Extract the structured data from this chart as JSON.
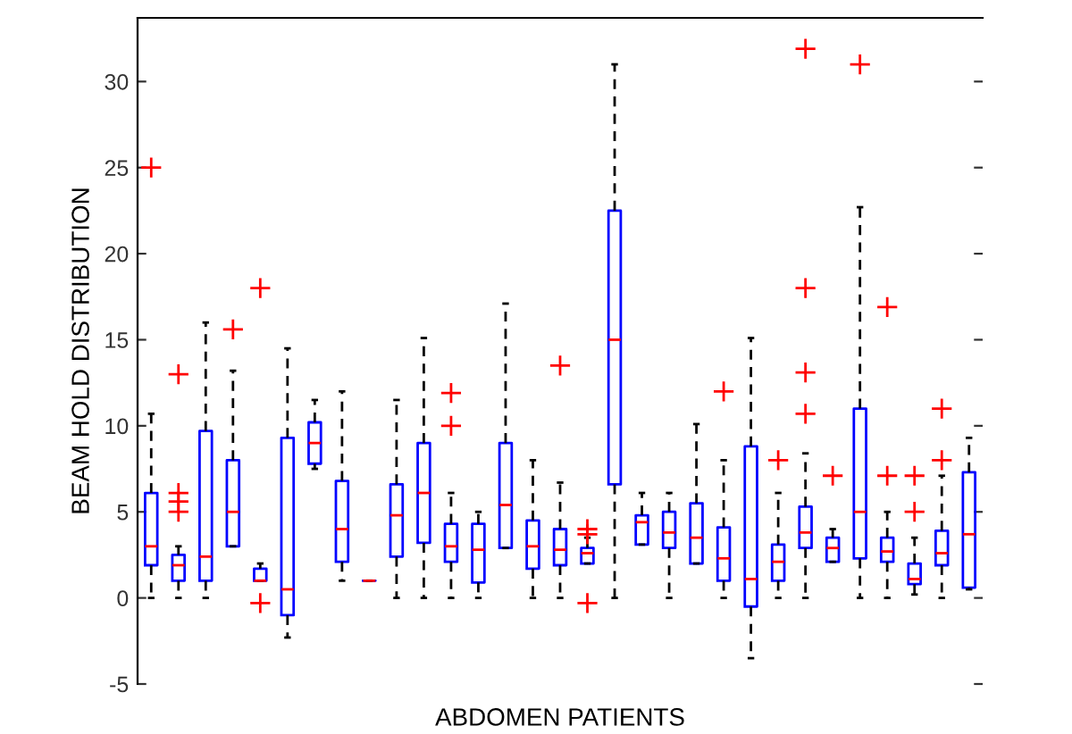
{
  "chart_data": {
    "type": "box",
    "xlabel": "ABDOMEN PATIENTS",
    "ylabel": "BEAM HOLD DISTRIBUTION",
    "categories": [
      null,
      null,
      null,
      null,
      null,
      null,
      null,
      null,
      null,
      null,
      null,
      null,
      null,
      null,
      null,
      null,
      null,
      null,
      null,
      null,
      null,
      null,
      null,
      null,
      null,
      null,
      null,
      null,
      null,
      null,
      null
    ],
    "ylim": [
      -5,
      33.7
    ],
    "yticks": [
      -5,
      0,
      5,
      10,
      15,
      20,
      25,
      30
    ],
    "boxes": [
      {
        "low": 0,
        "q1": 1.9,
        "median": 3.0,
        "q3": 6.1,
        "high": 10.7,
        "outliers": [
          25
        ]
      },
      {
        "low": 0,
        "q1": 1.0,
        "median": 1.9,
        "q3": 2.5,
        "high": 3.0,
        "outliers": [
          13,
          6.1,
          5.6,
          5.0
        ]
      },
      {
        "low": 0,
        "q1": 1.0,
        "median": 2.4,
        "q3": 9.7,
        "high": 16
      },
      {
        "low": 3.0,
        "q1": 3.0,
        "median": 5.0,
        "q3": 8.0,
        "high": 13.2,
        "outliers": [
          15.6
        ]
      },
      {
        "low": 1.0,
        "q1": 1.0,
        "median": 1.0,
        "q3": 1.7,
        "high": 2.0,
        "outliers": [
          18,
          -0.3
        ]
      },
      {
        "low": -2.3,
        "q1": -1.0,
        "median": 0.5,
        "q3": 9.3,
        "high": 14.5
      },
      {
        "low": 7.5,
        "q1": 7.8,
        "median": 9.0,
        "q3": 10.2,
        "high": 11.5
      },
      {
        "low": 1.0,
        "q1": 2.1,
        "median": 4.0,
        "q3": 6.8,
        "high": 12
      },
      {
        "low": 1.0,
        "q1": 1.0,
        "median": 1.0,
        "q3": 1.0,
        "high": 1.0
      },
      {
        "low": 0,
        "q1": 2.4,
        "median": 4.8,
        "q3": 6.6,
        "high": 11.5
      },
      {
        "low": 0,
        "q1": 3.2,
        "median": 6.1,
        "q3": 9.0,
        "high": 15.1
      },
      {
        "low": 0,
        "q1": 2.1,
        "median": 3.0,
        "q3": 4.3,
        "high": 6.1,
        "outliers": [
          11.9,
          10.0
        ]
      },
      {
        "low": 0,
        "q1": 0.9,
        "median": 2.8,
        "q3": 4.3,
        "high": 5.0
      },
      {
        "low": 2.9,
        "q1": 2.9,
        "median": 5.4,
        "q3": 9.0,
        "high": 17.1
      },
      {
        "low": 0,
        "q1": 1.7,
        "median": 3.0,
        "q3": 4.5,
        "high": 8.0
      },
      {
        "low": 0,
        "q1": 1.9,
        "median": 2.8,
        "q3": 4.0,
        "high": 6.7,
        "outliers": [
          13.5
        ]
      },
      {
        "low": 2.0,
        "q1": 2.0,
        "median": 2.6,
        "q3": 2.9,
        "high": 3.5,
        "outliers": [
          4.0,
          3.7,
          -0.3
        ]
      },
      {
        "low": 0,
        "q1": 6.6,
        "median": 15.0,
        "q3": 22.5,
        "high": 31
      },
      {
        "low": 3.1,
        "q1": 3.1,
        "median": 4.4,
        "q3": 4.8,
        "high": 6.1
      },
      {
        "low": 0,
        "q1": 2.9,
        "median": 3.8,
        "q3": 5.0,
        "high": 6.1
      },
      {
        "low": 2.0,
        "q1": 2.0,
        "median": 3.5,
        "q3": 5.5,
        "high": 10.1
      },
      {
        "low": 0,
        "q1": 1.0,
        "median": 2.3,
        "q3": 4.1,
        "high": 8.0,
        "outliers": [
          12.0
        ]
      },
      {
        "low": -3.5,
        "q1": -0.5,
        "median": 1.1,
        "q3": 8.8,
        "high": 15.1
      },
      {
        "low": 0,
        "q1": 1.0,
        "median": 2.1,
        "q3": 3.1,
        "high": 6.1,
        "outliers": [
          8.0
        ]
      },
      {
        "low": 0,
        "q1": 2.9,
        "median": 3.8,
        "q3": 5.3,
        "high": 8.4,
        "outliers": [
          31.9,
          18.0,
          13.1,
          10.7
        ]
      },
      {
        "low": 2.1,
        "q1": 2.1,
        "median": 2.9,
        "q3": 3.5,
        "high": 4.0,
        "outliers": [
          7.1
        ]
      },
      {
        "low": 0,
        "q1": 2.3,
        "median": 5.0,
        "q3": 11.0,
        "high": 22.7,
        "outliers": [
          31.0
        ]
      },
      {
        "low": 0,
        "q1": 2.1,
        "median": 2.7,
        "q3": 3.5,
        "high": 5.0,
        "outliers": [
          16.9,
          7.1
        ]
      },
      {
        "low": 0.2,
        "q1": 0.8,
        "median": 1.1,
        "q3": 2.0,
        "high": 3.5,
        "outliers": [
          7.1,
          5.0
        ]
      },
      {
        "low": 0,
        "q1": 1.9,
        "median": 2.6,
        "q3": 3.9,
        "high": 7.1,
        "outliers": [
          11.0,
          8.0
        ]
      },
      {
        "low": 0.5,
        "q1": 0.6,
        "median": 3.7,
        "q3": 7.3,
        "high": 9.3
      }
    ]
  }
}
